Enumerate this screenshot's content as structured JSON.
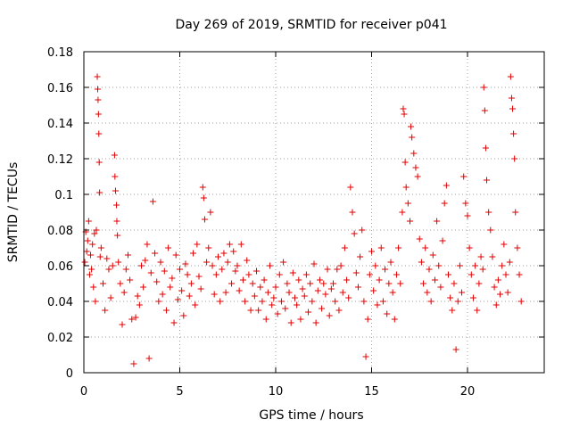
{
  "chart_data": {
    "type": "scatter",
    "title": "Day 269 of 2019, SRMTID for receiver p041",
    "xlabel": "GPS time / hours",
    "ylabel": "SRMTID / TECUs",
    "xlim": [
      0,
      24
    ],
    "ylim": [
      0,
      0.18
    ],
    "xticks": [
      0,
      5,
      10,
      15,
      20
    ],
    "xtick_labels": [
      "0",
      "5",
      "10",
      "15",
      "20"
    ],
    "yticks": [
      0,
      0.02,
      0.04,
      0.06,
      0.08,
      0.1,
      0.12,
      0.14,
      0.16,
      0.18
    ],
    "ytick_labels": [
      "0",
      "0.02",
      "0.04",
      "0.06",
      "0.08",
      "0.1",
      "0.12",
      "0.14",
      "0.16",
      "0.18"
    ],
    "grid": true,
    "marker": "+",
    "color": "#e00000",
    "series": [
      {
        "name": "SRMTID",
        "points": [
          [
            0.05,
            0.062
          ],
          [
            0.1,
            0.079
          ],
          [
            0.15,
            0.068
          ],
          [
            0.2,
            0.074
          ],
          [
            0.25,
            0.085
          ],
          [
            0.3,
            0.055
          ],
          [
            0.35,
            0.066
          ],
          [
            0.4,
            0.058
          ],
          [
            0.45,
            0.072
          ],
          [
            0.5,
            0.048
          ],
          [
            0.55,
            0.078
          ],
          [
            0.6,
            0.04
          ],
          [
            0.65,
            0.08
          ],
          [
            0.7,
            0.166
          ],
          [
            0.72,
            0.159
          ],
          [
            0.74,
            0.153
          ],
          [
            0.76,
            0.145
          ],
          [
            0.78,
            0.134
          ],
          [
            0.8,
            0.118
          ],
          [
            0.82,
            0.101
          ],
          [
            0.85,
            0.065
          ],
          [
            0.9,
            0.07
          ],
          [
            1.0,
            0.05
          ],
          [
            1.1,
            0.035
          ],
          [
            1.2,
            0.064
          ],
          [
            1.3,
            0.058
          ],
          [
            1.4,
            0.042
          ],
          [
            1.5,
            0.06
          ],
          [
            1.6,
            0.122
          ],
          [
            1.62,
            0.11
          ],
          [
            1.65,
            0.102
          ],
          [
            1.7,
            0.094
          ],
          [
            1.72,
            0.085
          ],
          [
            1.75,
            0.077
          ],
          [
            1.8,
            0.062
          ],
          [
            1.9,
            0.05
          ],
          [
            2.0,
            0.027
          ],
          [
            2.1,
            0.045
          ],
          [
            2.2,
            0.058
          ],
          [
            2.3,
            0.066
          ],
          [
            2.4,
            0.052
          ],
          [
            2.5,
            0.03
          ],
          [
            2.6,
            0.005
          ],
          [
            2.7,
            0.031
          ],
          [
            2.8,
            0.043
          ],
          [
            2.9,
            0.038
          ],
          [
            3.0,
            0.06
          ],
          [
            3.1,
            0.048
          ],
          [
            3.2,
            0.063
          ],
          [
            3.3,
            0.072
          ],
          [
            3.4,
            0.008
          ],
          [
            3.5,
            0.056
          ],
          [
            3.6,
            0.096
          ],
          [
            3.7,
            0.067
          ],
          [
            3.8,
            0.051
          ],
          [
            3.9,
            0.04
          ],
          [
            4.0,
            0.062
          ],
          [
            4.1,
            0.044
          ],
          [
            4.2,
            0.057
          ],
          [
            4.3,
            0.035
          ],
          [
            4.4,
            0.07
          ],
          [
            4.5,
            0.048
          ],
          [
            4.6,
            0.053
          ],
          [
            4.7,
            0.028
          ],
          [
            4.8,
            0.066
          ],
          [
            4.9,
            0.041
          ],
          [
            5.0,
            0.058
          ],
          [
            5.1,
            0.046
          ],
          [
            5.2,
            0.032
          ],
          [
            5.3,
            0.061
          ],
          [
            5.4,
            0.055
          ],
          [
            5.5,
            0.043
          ],
          [
            5.6,
            0.05
          ],
          [
            5.7,
            0.067
          ],
          [
            5.8,
            0.038
          ],
          [
            5.9,
            0.072
          ],
          [
            6.0,
            0.054
          ],
          [
            6.1,
            0.047
          ],
          [
            6.2,
            0.104
          ],
          [
            6.25,
            0.098
          ],
          [
            6.3,
            0.086
          ],
          [
            6.4,
            0.062
          ],
          [
            6.5,
            0.07
          ],
          [
            6.6,
            0.09
          ],
          [
            6.7,
            0.06
          ],
          [
            6.8,
            0.044
          ],
          [
            6.9,
            0.055
          ],
          [
            7.0,
            0.065
          ],
          [
            7.1,
            0.04
          ],
          [
            7.2,
            0.058
          ],
          [
            7.3,
            0.067
          ],
          [
            7.4,
            0.045
          ],
          [
            7.5,
            0.062
          ],
          [
            7.6,
            0.072
          ],
          [
            7.7,
            0.05
          ],
          [
            7.8,
            0.068
          ],
          [
            7.9,
            0.057
          ],
          [
            8.0,
            0.06
          ],
          [
            8.1,
            0.046
          ],
          [
            8.2,
            0.072
          ],
          [
            8.3,
            0.052
          ],
          [
            8.4,
            0.04
          ],
          [
            8.5,
            0.063
          ],
          [
            8.6,
            0.055
          ],
          [
            8.7,
            0.035
          ],
          [
            8.8,
            0.05
          ],
          [
            8.9,
            0.043
          ],
          [
            9.0,
            0.057
          ],
          [
            9.1,
            0.035
          ],
          [
            9.2,
            0.048
          ],
          [
            9.3,
            0.04
          ],
          [
            9.4,
            0.052
          ],
          [
            9.5,
            0.03
          ],
          [
            9.6,
            0.045
          ],
          [
            9.7,
            0.06
          ],
          [
            9.8,
            0.038
          ],
          [
            9.9,
            0.042
          ],
          [
            10.0,
            0.048
          ],
          [
            10.1,
            0.033
          ],
          [
            10.2,
            0.055
          ],
          [
            10.3,
            0.04
          ],
          [
            10.4,
            0.062
          ],
          [
            10.5,
            0.036
          ],
          [
            10.6,
            0.05
          ],
          [
            10.7,
            0.045
          ],
          [
            10.8,
            0.028
          ],
          [
            10.9,
            0.056
          ],
          [
            11.0,
            0.042
          ],
          [
            11.1,
            0.038
          ],
          [
            11.2,
            0.052
          ],
          [
            11.3,
            0.03
          ],
          [
            11.4,
            0.047
          ],
          [
            11.5,
            0.043
          ],
          [
            11.6,
            0.055
          ],
          [
            11.7,
            0.034
          ],
          [
            11.8,
            0.05
          ],
          [
            11.9,
            0.04
          ],
          [
            12.0,
            0.061
          ],
          [
            12.1,
            0.028
          ],
          [
            12.2,
            0.046
          ],
          [
            12.3,
            0.052
          ],
          [
            12.4,
            0.036
          ],
          [
            12.5,
            0.05
          ],
          [
            12.6,
            0.044
          ],
          [
            12.7,
            0.058
          ],
          [
            12.8,
            0.032
          ],
          [
            12.9,
            0.047
          ],
          [
            13.0,
            0.05
          ],
          [
            13.1,
            0.04
          ],
          [
            13.2,
            0.058
          ],
          [
            13.3,
            0.035
          ],
          [
            13.4,
            0.06
          ],
          [
            13.5,
            0.045
          ],
          [
            13.6,
            0.07
          ],
          [
            13.7,
            0.052
          ],
          [
            13.8,
            0.042
          ],
          [
            13.9,
            0.104
          ],
          [
            14.0,
            0.09
          ],
          [
            14.1,
            0.078
          ],
          [
            14.2,
            0.056
          ],
          [
            14.3,
            0.048
          ],
          [
            14.4,
            0.065
          ],
          [
            14.5,
            0.08
          ],
          [
            14.6,
            0.04
          ],
          [
            14.7,
            0.009
          ],
          [
            14.8,
            0.03
          ],
          [
            14.9,
            0.055
          ],
          [
            15.0,
            0.068
          ],
          [
            15.1,
            0.046
          ],
          [
            15.2,
            0.06
          ],
          [
            15.3,
            0.038
          ],
          [
            15.4,
            0.052
          ],
          [
            15.5,
            0.07
          ],
          [
            15.6,
            0.04
          ],
          [
            15.7,
            0.058
          ],
          [
            15.8,
            0.033
          ],
          [
            15.9,
            0.05
          ],
          [
            16.0,
            0.062
          ],
          [
            16.1,
            0.045
          ],
          [
            16.2,
            0.03
          ],
          [
            16.3,
            0.055
          ],
          [
            16.4,
            0.07
          ],
          [
            16.5,
            0.05
          ],
          [
            16.6,
            0.09
          ],
          [
            16.65,
            0.148
          ],
          [
            16.7,
            0.145
          ],
          [
            16.75,
            0.118
          ],
          [
            16.8,
            0.104
          ],
          [
            16.9,
            0.095
          ],
          [
            17.0,
            0.085
          ],
          [
            17.05,
            0.138
          ],
          [
            17.1,
            0.132
          ],
          [
            17.2,
            0.123
          ],
          [
            17.3,
            0.115
          ],
          [
            17.4,
            0.11
          ],
          [
            17.5,
            0.075
          ],
          [
            17.6,
            0.062
          ],
          [
            17.7,
            0.05
          ],
          [
            17.8,
            0.07
          ],
          [
            17.9,
            0.045
          ],
          [
            18.0,
            0.058
          ],
          [
            18.1,
            0.04
          ],
          [
            18.2,
            0.066
          ],
          [
            18.3,
            0.052
          ],
          [
            18.4,
            0.085
          ],
          [
            18.5,
            0.06
          ],
          [
            18.6,
            0.048
          ],
          [
            18.7,
            0.074
          ],
          [
            18.8,
            0.095
          ],
          [
            18.9,
            0.105
          ],
          [
            19.0,
            0.055
          ],
          [
            19.1,
            0.042
          ],
          [
            19.2,
            0.035
          ],
          [
            19.3,
            0.05
          ],
          [
            19.4,
            0.013
          ],
          [
            19.5,
            0.04
          ],
          [
            19.6,
            0.06
          ],
          [
            19.7,
            0.045
          ],
          [
            19.8,
            0.11
          ],
          [
            19.9,
            0.095
          ],
          [
            20.0,
            0.088
          ],
          [
            20.1,
            0.07
          ],
          [
            20.2,
            0.055
          ],
          [
            20.3,
            0.042
          ],
          [
            20.4,
            0.06
          ],
          [
            20.5,
            0.035
          ],
          [
            20.6,
            0.05
          ],
          [
            20.7,
            0.065
          ],
          [
            20.8,
            0.058
          ],
          [
            20.85,
            0.16
          ],
          [
            20.9,
            0.147
          ],
          [
            20.95,
            0.126
          ],
          [
            21.0,
            0.108
          ],
          [
            21.1,
            0.09
          ],
          [
            21.2,
            0.08
          ],
          [
            21.3,
            0.065
          ],
          [
            21.4,
            0.048
          ],
          [
            21.5,
            0.038
          ],
          [
            21.6,
            0.052
          ],
          [
            21.7,
            0.044
          ],
          [
            21.8,
            0.06
          ],
          [
            21.9,
            0.072
          ],
          [
            22.0,
            0.055
          ],
          [
            22.1,
            0.045
          ],
          [
            22.2,
            0.062
          ],
          [
            22.25,
            0.166
          ],
          [
            22.3,
            0.154
          ],
          [
            22.35,
            0.148
          ],
          [
            22.4,
            0.134
          ],
          [
            22.45,
            0.12
          ],
          [
            22.5,
            0.09
          ],
          [
            22.6,
            0.07
          ],
          [
            22.7,
            0.055
          ],
          [
            22.8,
            0.04
          ]
        ]
      }
    ]
  }
}
